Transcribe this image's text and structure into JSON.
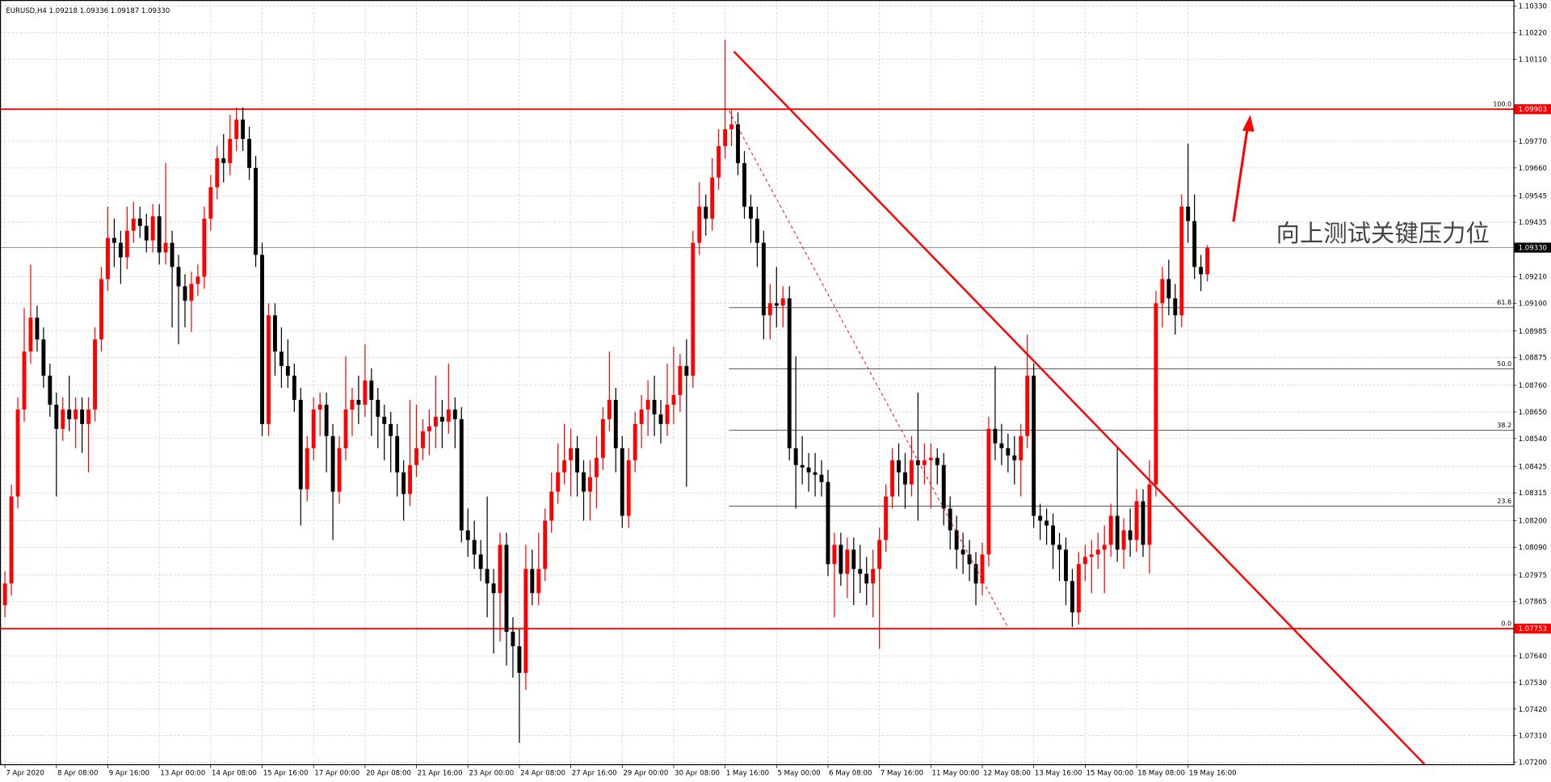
{
  "chart_data": {
    "type": "candlestick",
    "header": "EURUSD,H4  1.09218 1.09336 1.09187 1.09330",
    "annotation": "向上测试关键压力位",
    "up_color": "#ff0000",
    "down_color": "#000000",
    "grid": true,
    "xlim": [
      -0.77,
      234.6
    ],
    "ylim": [
      1.07192,
      1.10355
    ],
    "xticks": [
      {
        "value": 0,
        "label": "7 Apr 2020"
      },
      {
        "value": 8,
        "label": "8 Apr 08:00"
      },
      {
        "value": 16,
        "label": "9 Apr 16:00"
      },
      {
        "value": 24,
        "label": "13 Apr 00:00"
      },
      {
        "value": 32,
        "label": "14 Apr 08:00"
      },
      {
        "value": 40,
        "label": "15 Apr 16:00"
      },
      {
        "value": 48,
        "label": "17 Apr 00:00"
      },
      {
        "value": 56,
        "label": "20 Apr 08:00"
      },
      {
        "value": 64,
        "label": "21 Apr 16:00"
      },
      {
        "value": 72,
        "label": "23 Apr 00:00"
      },
      {
        "value": 80,
        "label": "24 Apr 08:00"
      },
      {
        "value": 88,
        "label": "27 Apr 16:00"
      },
      {
        "value": 96,
        "label": "29 Apr 00:00"
      },
      {
        "value": 104,
        "label": "30 Apr 08:00"
      },
      {
        "value": 112,
        "label": "1 May 16:00"
      },
      {
        "value": 120,
        "label": "5 May 00:00"
      },
      {
        "value": 128,
        "label": "6 May 08:00"
      },
      {
        "value": 136,
        "label": "7 May 16:00"
      },
      {
        "value": 144,
        "label": "11 May 00:00"
      },
      {
        "value": 152,
        "label": "12 May 08:00"
      },
      {
        "value": 160,
        "label": "13 May 16:00"
      },
      {
        "value": 168,
        "label": "15 May 00:00"
      },
      {
        "value": 176,
        "label": "18 May 08:00"
      },
      {
        "value": 184,
        "label": "19 May 16:00"
      }
    ],
    "yticks": [
      {
        "value": 1.1033,
        "label": "1.10330"
      },
      {
        "value": 1.1022,
        "label": "1.10220"
      },
      {
        "value": 1.1011,
        "label": "1.10110"
      },
      {
        "value": 1.0977,
        "label": "1.09770"
      },
      {
        "value": 1.0966,
        "label": "1.09660"
      },
      1.09545,
      1.09435,
      {
        "value": 1.0921,
        "label": "1.09210"
      },
      {
        "value": 1.091,
        "label": "1.09100"
      },
      1.08985,
      1.08875,
      {
        "value": 1.0876,
        "label": "1.08760"
      },
      {
        "value": 1.0865,
        "label": "1.08650"
      },
      {
        "value": 1.0854,
        "label": "1.08540"
      },
      1.08425,
      1.08315,
      {
        "value": 1.082,
        "label": "1.08200"
      },
      {
        "value": 1.0809,
        "label": "1.08090"
      },
      1.07975,
      1.07865,
      {
        "value": 1.0764,
        "label": "1.07640"
      },
      {
        "value": 1.0753,
        "label": "1.07530"
      },
      {
        "value": 1.0742,
        "label": "1.07420"
      },
      {
        "value": 1.0731,
        "label": "1.07310"
      },
      {
        "value": 1.072,
        "label": "1.07200"
      }
    ],
    "price_lines": [
      {
        "value": 1.09903,
        "label": "1.09903",
        "color": "#ff0000"
      },
      {
        "value": 1.0933,
        "label": "1.09330",
        "color": "#8a9aa8"
      },
      {
        "value": 1.07753,
        "label": "1.07753",
        "color": "#ff0000"
      }
    ],
    "fib_start": 112.6,
    "fib_levels": [
      {
        "value": 1.09903,
        "label": "100.0"
      },
      {
        "value": 1.09082,
        "label": "61.8"
      },
      {
        "value": 1.08828,
        "label": "50.0"
      },
      {
        "value": 1.08574,
        "label": "38.2"
      },
      {
        "value": 1.0826,
        "label": "23.6"
      },
      {
        "value": 1.07753,
        "label": "0.0"
      }
    ],
    "ohlc": [
      [
        1.0785,
        1.0799,
        1.078,
        1.0794
      ],
      [
        1.0794,
        1.0835,
        1.0789,
        1.083
      ],
      [
        1.083,
        1.0871,
        1.0825,
        1.0866
      ],
      [
        1.0866,
        1.0908,
        1.0861,
        1.089
      ],
      [
        1.089,
        1.0926,
        1.0885,
        1.0904
      ],
      [
        1.0904,
        1.0909,
        1.089,
        1.0895
      ],
      [
        1.0895,
        1.09,
        1.0875,
        1.088
      ],
      [
        1.088,
        1.0885,
        1.0863,
        1.0868
      ],
      [
        1.0868,
        1.0873,
        1.083,
        1.0858
      ],
      [
        1.0858,
        1.0871,
        1.0853,
        1.0866
      ],
      [
        1.0866,
        1.088,
        1.0857,
        1.0862
      ],
      [
        1.0862,
        1.0871,
        1.085,
        1.0866
      ],
      [
        1.0866,
        1.0871,
        1.0848,
        1.086
      ],
      [
        1.086,
        1.0871,
        1.084,
        1.0866
      ],
      [
        1.0866,
        1.09,
        1.0861,
        1.0895
      ],
      [
        1.0895,
        1.0925,
        1.089,
        1.092
      ],
      [
        1.092,
        1.095,
        1.0915,
        1.0937
      ],
      [
        1.0937,
        1.0945,
        1.0925,
        1.0935
      ],
      [
        1.0935,
        1.094,
        1.0918,
        1.0929
      ],
      [
        1.0929,
        1.095,
        1.0924,
        1.094
      ],
      [
        1.094,
        1.0952,
        1.0935,
        1.0945
      ],
      [
        1.0945,
        1.095,
        1.0937,
        1.0942
      ],
      [
        1.0942,
        1.0947,
        1.0931,
        1.0936
      ],
      [
        1.0936,
        1.0951,
        1.0931,
        1.0946
      ],
      [
        1.0946,
        1.0951,
        1.0926,
        1.0931
      ],
      [
        1.0931,
        1.0968,
        1.0926,
        1.0935
      ],
      [
        1.0935,
        1.094,
        1.09,
        1.0925
      ],
      [
        1.0925,
        1.093,
        1.0893,
        1.0917
      ],
      [
        1.0917,
        1.0922,
        1.09,
        1.0911
      ],
      [
        1.0911,
        1.0923,
        1.0898,
        1.0918
      ],
      [
        1.0918,
        1.0926,
        1.0913,
        1.0921
      ],
      [
        1.0921,
        1.095,
        1.0916,
        1.0945
      ],
      [
        1.0945,
        1.0963,
        1.094,
        1.0958
      ],
      [
        1.0958,
        1.0975,
        1.0953,
        1.097
      ],
      [
        1.097,
        1.098,
        1.096,
        1.0968
      ],
      [
        1.0968,
        1.0988,
        1.0963,
        1.0978
      ],
      [
        1.0978,
        1.0991,
        1.0973,
        1.0986
      ],
      [
        1.0986,
        1.0991,
        1.0973,
        1.0978
      ],
      [
        1.0978,
        1.0983,
        1.0961,
        1.0966
      ],
      [
        1.0966,
        1.0971,
        1.0925,
        1.093
      ],
      [
        1.093,
        1.0935,
        1.0855,
        1.086
      ],
      [
        1.086,
        1.091,
        1.0855,
        1.0905
      ],
      [
        1.0905,
        1.091,
        1.088,
        1.089
      ],
      [
        1.089,
        1.09,
        1.0875,
        1.0884
      ],
      [
        1.0884,
        1.0895,
        1.0875,
        1.088
      ],
      [
        1.088,
        1.0885,
        1.0865,
        1.087
      ],
      [
        1.087,
        1.0875,
        1.0818,
        1.0833
      ],
      [
        1.0833,
        1.0855,
        1.0828,
        1.085
      ],
      [
        1.085,
        1.0871,
        1.0845,
        1.0866
      ],
      [
        1.0866,
        1.0873,
        1.0855,
        1.0868
      ],
      [
        1.0868,
        1.0873,
        1.084,
        1.0855
      ],
      [
        1.0855,
        1.086,
        1.0812,
        1.0832
      ],
      [
        1.0832,
        1.0855,
        1.0827,
        1.085
      ],
      [
        1.085,
        1.0888,
        1.0845,
        1.0866
      ],
      [
        1.0866,
        1.0875,
        1.0855,
        1.087
      ],
      [
        1.087,
        1.088,
        1.086,
        1.0868
      ],
      [
        1.0868,
        1.0893,
        1.0863,
        1.0878
      ],
      [
        1.0878,
        1.0883,
        1.0855,
        1.087
      ],
      [
        1.087,
        1.0875,
        1.085,
        1.0863
      ],
      [
        1.0863,
        1.0868,
        1.0845,
        1.086
      ],
      [
        1.086,
        1.0865,
        1.084,
        1.0855
      ],
      [
        1.0855,
        1.086,
        1.083,
        1.084
      ],
      [
        1.084,
        1.0845,
        1.082,
        1.0831
      ],
      [
        1.0831,
        1.087,
        1.0826,
        1.0843
      ],
      [
        1.0843,
        1.0868,
        1.0838,
        1.085
      ],
      [
        1.085,
        1.0862,
        1.0845,
        1.0857
      ],
      [
        1.0857,
        1.0866,
        1.0847,
        1.0859
      ],
      [
        1.0859,
        1.088,
        1.085,
        1.0863
      ],
      [
        1.0863,
        1.087,
        1.085,
        1.0861
      ],
      [
        1.0861,
        1.0885,
        1.0856,
        1.0866
      ],
      [
        1.0866,
        1.0871,
        1.085,
        1.0862
      ],
      [
        1.0862,
        1.0867,
        1.0811,
        1.0816
      ],
      [
        1.0816,
        1.0825,
        1.0805,
        1.0812
      ],
      [
        1.0812,
        1.082,
        1.08,
        1.0806
      ],
      [
        1.0806,
        1.0812,
        1.0795,
        1.08
      ],
      [
        1.08,
        1.083,
        1.078,
        1.0794
      ],
      [
        1.0794,
        1.08,
        1.0765,
        1.079
      ],
      [
        1.079,
        1.0815,
        1.077,
        1.081
      ],
      [
        1.081,
        1.0815,
        1.076,
        1.0774
      ],
      [
        1.0774,
        1.078,
        1.0755,
        1.0768
      ],
      [
        1.0768,
        1.0775,
        1.0728,
        1.0757
      ],
      [
        1.0757,
        1.081,
        1.075,
        1.08
      ],
      [
        1.08,
        1.0808,
        1.0785,
        1.079
      ],
      [
        1.079,
        1.0815,
        1.0785,
        1.08
      ],
      [
        1.08,
        1.0825,
        1.0795,
        1.082
      ],
      [
        1.082,
        1.084,
        1.0815,
        1.0832
      ],
      [
        1.0832,
        1.0852,
        1.0827,
        1.084
      ],
      [
        1.084,
        1.086,
        1.0835,
        1.0845
      ],
      [
        1.0845,
        1.0858,
        1.083,
        1.085
      ],
      [
        1.085,
        1.0855,
        1.083,
        1.084
      ],
      [
        1.084,
        1.0845,
        1.082,
        1.0832
      ],
      [
        1.0832,
        1.0845,
        1.082,
        1.0838
      ],
      [
        1.0838,
        1.0855,
        1.0825,
        1.0846
      ],
      [
        1.0846,
        1.0867,
        1.0841,
        1.0862
      ],
      [
        1.0862,
        1.089,
        1.0857,
        1.087
      ],
      [
        1.087,
        1.0875,
        1.084,
        1.085
      ],
      [
        1.085,
        1.0855,
        1.0817,
        1.0822
      ],
      [
        1.0822,
        1.085,
        1.0817,
        1.0845
      ],
      [
        1.0845,
        1.0865,
        1.084,
        1.086
      ],
      [
        1.086,
        1.0872,
        1.085,
        1.0866
      ],
      [
        1.0866,
        1.0878,
        1.0855,
        1.087
      ],
      [
        1.087,
        1.088,
        1.0855,
        1.0864
      ],
      [
        1.0864,
        1.087,
        1.0852,
        1.086
      ],
      [
        1.086,
        1.0885,
        1.0855,
        1.0868
      ],
      [
        1.0868,
        1.0892,
        1.086,
        1.0872
      ],
      [
        1.0872,
        1.0889,
        1.0865,
        1.0884
      ],
      [
        1.0884,
        1.0895,
        1.0834,
        1.088
      ],
      [
        1.088,
        1.094,
        1.0875,
        1.0935
      ],
      [
        1.0935,
        1.096,
        1.093,
        1.095
      ],
      [
        1.095,
        1.0955,
        1.0938,
        1.0945
      ],
      [
        1.0945,
        1.097,
        1.094,
        1.0962
      ],
      [
        1.0962,
        1.0982,
        1.0957,
        1.0975
      ],
      [
        1.0975,
        1.1019,
        1.097,
        1.0982
      ],
      [
        1.0982,
        1.099,
        1.0975,
        1.0984
      ],
      [
        1.0984,
        1.0989,
        1.0963,
        1.0968
      ],
      [
        1.0968,
        1.0973,
        1.0945,
        1.095
      ],
      [
        1.095,
        1.0955,
        1.0935,
        1.0945
      ],
      [
        1.0945,
        1.095,
        1.0925,
        1.0935
      ],
      [
        1.0935,
        1.094,
        1.0895,
        1.0905
      ],
      [
        1.0905,
        1.0918,
        1.0895,
        1.091
      ],
      [
        1.091,
        1.0925,
        1.09,
        1.0909
      ],
      [
        1.0909,
        1.0917,
        1.09,
        1.0912
      ],
      [
        1.0912,
        1.0917,
        1.0845,
        1.085
      ],
      [
        1.085,
        1.0888,
        1.0825,
        1.0843
      ],
      [
        1.0843,
        1.0855,
        1.0835,
        1.0842
      ],
      [
        1.0842,
        1.0848,
        1.0832,
        1.084
      ],
      [
        1.084,
        1.0848,
        1.083,
        1.0839
      ],
      [
        1.0839,
        1.0845,
        1.083,
        1.0836
      ],
      [
        1.0836,
        1.0841,
        1.0797,
        1.0802
      ],
      [
        1.0802,
        1.0815,
        1.078,
        1.081
      ],
      [
        1.081,
        1.0815,
        1.0793,
        1.0798
      ],
      [
        1.0798,
        1.0813,
        1.0788,
        1.0808
      ],
      [
        1.0808,
        1.0813,
        1.0785,
        1.08
      ],
      [
        1.08,
        1.081,
        1.079,
        1.0798
      ],
      [
        1.0798,
        1.0805,
        1.0785,
        1.0794
      ],
      [
        1.0794,
        1.0808,
        1.078,
        1.08
      ],
      [
        1.08,
        1.0817,
        1.0767,
        1.0812
      ],
      [
        1.0812,
        1.0835,
        1.0807,
        1.083
      ],
      [
        1.083,
        1.085,
        1.0825,
        1.0845
      ],
      [
        1.0845,
        1.0852,
        1.083,
        1.084
      ],
      [
        1.084,
        1.0848,
        1.0825,
        1.0835
      ],
      [
        1.0835,
        1.0855,
        1.083,
        1.0845
      ],
      [
        1.0845,
        1.0873,
        1.082,
        1.0843
      ],
      [
        1.0843,
        1.0852,
        1.0835,
        1.0845
      ],
      [
        1.0845,
        1.0852,
        1.0825,
        1.0846
      ],
      [
        1.0846,
        1.085,
        1.0835,
        1.0843
      ],
      [
        1.0843,
        1.0848,
        1.0818,
        1.0825
      ],
      [
        1.0825,
        1.083,
        1.0808,
        1.0816
      ],
      [
        1.0816,
        1.0822,
        1.08,
        1.0808
      ],
      [
        1.0808,
        1.0815,
        1.0798,
        1.0806
      ],
      [
        1.0806,
        1.0812,
        1.0795,
        1.0802
      ],
      [
        1.0802,
        1.0807,
        1.0785,
        1.0794
      ],
      [
        1.0794,
        1.0811,
        1.0789,
        1.0806
      ],
      [
        1.0806,
        1.0863,
        1.0801,
        1.0858
      ],
      [
        1.0858,
        1.0884,
        1.0845,
        1.0852
      ],
      [
        1.0852,
        1.086,
        1.0843,
        1.085
      ],
      [
        1.085,
        1.0856,
        1.084,
        1.0847
      ],
      [
        1.0847,
        1.0855,
        1.0835,
        1.0845
      ],
      [
        1.0845,
        1.086,
        1.083,
        1.0855
      ],
      [
        1.0855,
        1.0897,
        1.085,
        1.088
      ],
      [
        1.088,
        1.0885,
        1.0817,
        1.0822
      ],
      [
        1.0822,
        1.0827,
        1.0812,
        1.082
      ],
      [
        1.082,
        1.0825,
        1.081,
        1.0818
      ],
      [
        1.0818,
        1.0823,
        1.08,
        1.081
      ],
      [
        1.081,
        1.0815,
        1.0795,
        1.0808
      ],
      [
        1.0808,
        1.0813,
        1.0785,
        1.0795
      ],
      [
        1.0795,
        1.08,
        1.0776,
        1.0782
      ],
      [
        1.0782,
        1.0807,
        1.0777,
        1.0802
      ],
      [
        1.0802,
        1.081,
        1.0795,
        1.0805
      ],
      [
        1.0805,
        1.0812,
        1.079,
        1.0806
      ],
      [
        1.0806,
        1.0815,
        1.08,
        1.0808
      ],
      [
        1.0808,
        1.0818,
        1.079,
        1.081
      ],
      [
        1.081,
        1.0827,
        1.0805,
        1.0822
      ],
      [
        1.0822,
        1.085,
        1.0803,
        1.0808
      ],
      [
        1.0808,
        1.0821,
        1.08,
        1.0816
      ],
      [
        1.0816,
        1.0825,
        1.0805,
        1.0812
      ],
      [
        1.0812,
        1.0833,
        1.0807,
        1.0828
      ],
      [
        1.0828,
        1.0833,
        1.0805,
        1.081
      ],
      [
        1.081,
        1.0845,
        1.0798,
        1.0835
      ],
      [
        1.0835,
        1.0915,
        1.083,
        1.091
      ],
      [
        1.091,
        1.0925,
        1.09,
        1.092
      ],
      [
        1.092,
        1.0928,
        1.0905,
        1.0912
      ],
      [
        1.0912,
        1.0918,
        1.0897,
        1.0905
      ],
      [
        1.0905,
        1.0955,
        1.09,
        1.095
      ],
      [
        1.095,
        1.0976,
        1.0935,
        1.0944
      ],
      [
        1.0944,
        1.0955,
        1.092,
        1.0925
      ],
      [
        1.0925,
        1.093,
        1.0915,
        1.0922
      ],
      [
        1.0922,
        1.0934,
        1.0919,
        1.0933
      ]
    ]
  }
}
